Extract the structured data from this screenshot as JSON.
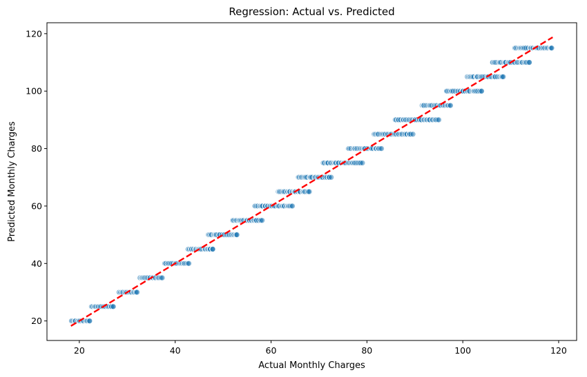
{
  "chart_data": {
    "type": "scatter",
    "title": "Regression: Actual vs. Predicted",
    "xlabel": "Actual Monthly Charges",
    "ylabel": "Predicted Monthly Charges",
    "xlim": [
      13.25,
      123.75
    ],
    "ylim": [
      13.2,
      123.8
    ],
    "xticks": [
      20,
      40,
      60,
      80,
      100,
      120
    ],
    "yticks": [
      20,
      40,
      60,
      80,
      100,
      120
    ],
    "grid": false,
    "legend": "none",
    "point_color": "#1f77b4",
    "point_alpha": 0.5,
    "line_color": "#ff0000",
    "line_style": "dashed",
    "reference_line": {
      "x": [
        18.25,
        118.75
      ],
      "y": [
        18.25,
        118.75
      ]
    },
    "series": [
      {
        "clusters": [
          {
            "y": 20,
            "x_min": 18.3,
            "x_max": 22.2,
            "n": 24
          },
          {
            "y": 25,
            "x_min": 22.6,
            "x_max": 27.2,
            "n": 26
          },
          {
            "y": 30,
            "x_min": 28.2,
            "x_max": 32.0,
            "n": 24
          },
          {
            "y": 35,
            "x_min": 32.8,
            "x_max": 37.2,
            "n": 26
          },
          {
            "y": 40,
            "x_min": 37.8,
            "x_max": 42.8,
            "n": 28
          },
          {
            "y": 45,
            "x_min": 42.6,
            "x_max": 48.0,
            "n": 30
          },
          {
            "y": 50,
            "x_min": 46.8,
            "x_max": 53.0,
            "n": 34
          },
          {
            "y": 55,
            "x_min": 52.0,
            "x_max": 58.0,
            "n": 34
          },
          {
            "y": 60,
            "x_min": 56.5,
            "x_max": 64.5,
            "n": 40
          },
          {
            "y": 65,
            "x_min": 61.5,
            "x_max": 68.0,
            "n": 34
          },
          {
            "y": 70,
            "x_min": 65.5,
            "x_max": 72.5,
            "n": 36
          },
          {
            "y": 75,
            "x_min": 71.0,
            "x_max": 79.0,
            "n": 40
          },
          {
            "y": 80,
            "x_min": 76.0,
            "x_max": 83.0,
            "n": 36
          },
          {
            "y": 85,
            "x_min": 81.5,
            "x_max": 89.5,
            "n": 40
          },
          {
            "y": 90,
            "x_min": 86.0,
            "x_max": 95.0,
            "n": 42
          },
          {
            "y": 95,
            "x_min": 91.5,
            "x_max": 97.5,
            "n": 34
          },
          {
            "y": 100,
            "x_min": 96.5,
            "x_max": 104.0,
            "n": 38
          },
          {
            "y": 105,
            "x_min": 101.0,
            "x_max": 108.5,
            "n": 38
          },
          {
            "y": 110,
            "x_min": 106.0,
            "x_max": 114.0,
            "n": 40
          },
          {
            "y": 115,
            "x_min": 110.8,
            "x_max": 118.7,
            "n": 42
          }
        ]
      }
    ]
  }
}
